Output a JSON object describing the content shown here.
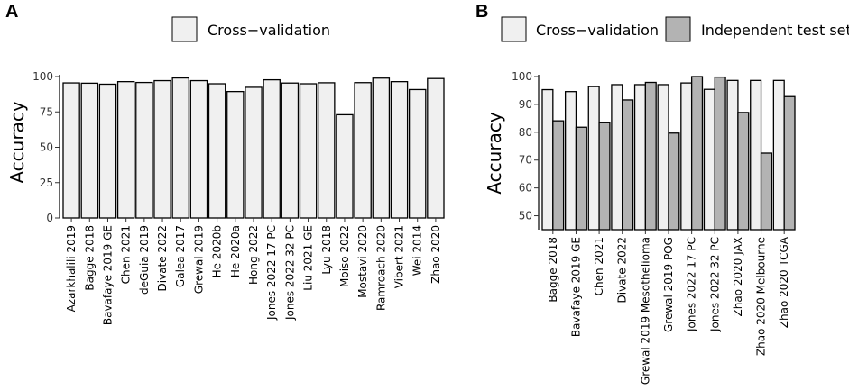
{
  "chart_data": [
    {
      "panel": "A",
      "type": "bar",
      "title": "",
      "xlabel": "",
      "ylabel": "Accuracy",
      "ylim": [
        0,
        100
      ],
      "yticks": [
        0,
        25,
        50,
        75,
        100
      ],
      "grid": false,
      "legend_position": "top",
      "categories": [
        "Azarkhalili 2019",
        "Bagge 2018",
        "Bavafaye 2019 GE",
        "Chen 2021",
        "deGuia 2019",
        "Divate 2022",
        "Galea 2017",
        "Grewal 2019",
        "He 2020b",
        "He 2020a",
        "Hong 2022",
        "Jones 2022 17 PC",
        "Jones 2022 32 PC",
        "Liu 2021 GE",
        "Lyu 2018",
        "Moiso 2022",
        "Mostavi 2020",
        "Ramroach 2020",
        "Vibert 2021",
        "Wei 2014",
        "Zhao 2020"
      ],
      "series": [
        {
          "name": "Cross−validation",
          "color": "#f0f0f0",
          "values": [
            95.5,
            95.3,
            94.6,
            96.4,
            95.8,
            97.1,
            99.0,
            97.1,
            94.9,
            89.4,
            92.4,
            97.7,
            95.4,
            94.9,
            95.6,
            73.0,
            95.7,
            98.9,
            96.4,
            90.8,
            98.6
          ]
        }
      ]
    },
    {
      "panel": "B",
      "type": "bar",
      "title": "",
      "xlabel": "",
      "ylabel": "Accuracy",
      "ylim": [
        45,
        100
      ],
      "yticks": [
        50,
        60,
        70,
        80,
        90,
        100
      ],
      "grid": false,
      "legend_position": "top",
      "categories": [
        "Bagge 2018",
        "Bavafaye 2019 GE",
        "Chen 2021",
        "Divate 2022",
        "Grewal 2019 Mesothelioma",
        "Grewal 2019 POG",
        "Jones 2022 17 PC",
        "Jones 2022 32 PC",
        "Zhao 2020 JAX",
        "Zhao 2020 Melbourne",
        "Zhao 2020 TCGA"
      ],
      "series": [
        {
          "name": "Cross−validation",
          "color": "#f0f0f0",
          "values": [
            95.3,
            94.6,
            96.4,
            97.1,
            97.1,
            97.1,
            97.7,
            95.4,
            98.6,
            98.6,
            98.6
          ]
        },
        {
          "name": "Independent test set",
          "color": "#b3b3b3",
          "values": [
            84.1,
            81.8,
            83.4,
            91.6,
            97.9,
            79.7,
            100.0,
            99.8,
            87.1,
            72.5,
            92.8
          ]
        }
      ]
    }
  ]
}
